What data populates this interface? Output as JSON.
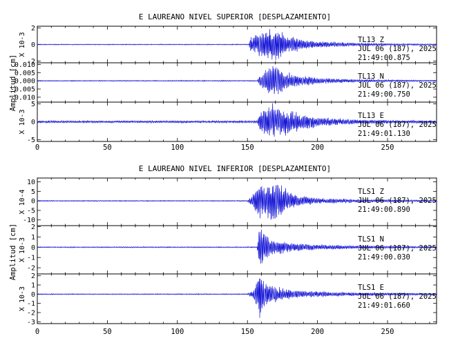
{
  "chart_data": [
    {
      "type": "line",
      "title": "E LAUREANO NIVEL SUPERIOR [DESPLAZAMIENTO]",
      "ylabel": "Amplitud [cm]",
      "xlim": [
        0,
        285
      ],
      "x_ticks": [
        "0",
        "50",
        "100",
        "150",
        "200",
        "250"
      ],
      "x_tick_values": [
        0,
        50,
        100,
        150,
        200,
        250
      ],
      "series_color": "#1515d6",
      "traces": [
        {
          "station": "TL13",
          "component": "Z",
          "date": "JUL 06 (187), 2025",
          "time": "21:49:00.875",
          "multiplier": "X 10-3",
          "ylim": [
            -2.2,
            2.2
          ],
          "y_ticks": [
            "-2",
            "0",
            "2"
          ],
          "y_tick_values": [
            -2,
            0,
            2
          ],
          "signal": {
            "noise": 0.05,
            "onset": 151,
            "env_points": [
              [
                151,
                0.06
              ],
              [
                152,
                0.9
              ],
              [
                158,
                1.3
              ],
              [
                163,
                1.8
              ],
              [
                168,
                2.0
              ],
              [
                172,
                1.6
              ],
              [
                178,
                1.0
              ],
              [
                190,
                0.6
              ],
              [
                205,
                0.35
              ],
              [
                230,
                0.18
              ],
              [
                260,
                0.1
              ],
              [
                285,
                0.08
              ]
            ]
          }
        },
        {
          "station": "TL13",
          "component": "N",
          "date": "JUL 06 (187), 2025",
          "time": "21:49:00.750",
          "multiplier": "",
          "ylim": [
            -0.013,
            0.011
          ],
          "y_ticks": [
            "-0.010",
            "-0.005",
            "0.000",
            "0.005",
            "0.010"
          ],
          "y_tick_values": [
            -0.01,
            -0.005,
            0.0,
            0.005,
            0.01
          ],
          "signal": {
            "noise": 0.0003,
            "onset": 157,
            "env_points": [
              [
                157,
                0.0004
              ],
              [
                159,
                0.004
              ],
              [
                164,
                0.007
              ],
              [
                168,
                0.0095
              ],
              [
                172,
                0.009
              ],
              [
                176,
                0.006
              ],
              [
                185,
                0.0035
              ],
              [
                200,
                0.0018
              ],
              [
                230,
                0.0008
              ],
              [
                285,
                0.0004
              ]
            ]
          }
        },
        {
          "station": "TL13",
          "component": "E",
          "date": "JUL 06 (187), 2025",
          "time": "21:49:01.130",
          "multiplier": "X 10-3",
          "ylim": [
            -5.5,
            5.5
          ],
          "y_ticks": [
            "-5",
            "0",
            "5"
          ],
          "y_tick_values": [
            -5,
            0,
            5
          ],
          "signal": {
            "noise": 0.3,
            "onset": 157,
            "env_points": [
              [
                157,
                0.35
              ],
              [
                159,
                3.0
              ],
              [
                163,
                4.0
              ],
              [
                168,
                4.8
              ],
              [
                172,
                4.0
              ],
              [
                180,
                3.2
              ],
              [
                190,
                2.0
              ],
              [
                205,
                1.2
              ],
              [
                230,
                0.6
              ],
              [
                260,
                0.4
              ],
              [
                285,
                0.35
              ]
            ]
          }
        }
      ]
    },
    {
      "type": "line",
      "title": "E LAUREANO NIVEL INFERIOR [DESPLAZAMIENTO]",
      "ylabel": "Amplitud [cm]",
      "xlim": [
        0,
        285
      ],
      "x_ticks": [
        "0",
        "50",
        "100",
        "150",
        "200",
        "250"
      ],
      "x_tick_values": [
        0,
        50,
        100,
        150,
        200,
        250
      ],
      "series_color": "#1515d6",
      "traces": [
        {
          "station": "TLS1",
          "component": "Z",
          "date": "JUL 06 (187), 2025",
          "time": "21:49:00.890",
          "multiplier": "X 10-4",
          "ylim": [
            -13,
            12
          ],
          "y_ticks": [
            "-10",
            "-5",
            "0",
            "5",
            "10"
          ],
          "y_tick_values": [
            -10,
            -5,
            0,
            5,
            10
          ],
          "signal": {
            "noise": 0.25,
            "onset": 150,
            "env_points": [
              [
                150,
                0.3
              ],
              [
                153,
                2.5
              ],
              [
                157,
                7
              ],
              [
                160,
                10
              ],
              [
                165,
                9
              ],
              [
                170,
                11
              ],
              [
                175,
                7
              ],
              [
                185,
                3
              ],
              [
                200,
                1.5
              ],
              [
                230,
                0.8
              ],
              [
                285,
                0.4
              ]
            ]
          }
        },
        {
          "station": "TLS1",
          "component": "N",
          "date": "JUL 06 (187), 2025",
          "time": "21:49:00.030",
          "multiplier": "X 10-3",
          "ylim": [
            -2.6,
            2.1
          ],
          "y_ticks": [
            "-2",
            "-1",
            "0",
            "1",
            "2"
          ],
          "y_tick_values": [
            -2,
            -1,
            0,
            1,
            2
          ],
          "signal": {
            "noise": 0.05,
            "onset": 157,
            "env_points": [
              [
                157,
                0.06
              ],
              [
                158,
                1.5
              ],
              [
                159,
                2.4
              ],
              [
                161,
                1.6
              ],
              [
                165,
                0.9
              ],
              [
                170,
                0.7
              ],
              [
                180,
                0.45
              ],
              [
                200,
                0.25
              ],
              [
                230,
                0.15
              ],
              [
                285,
                0.08
              ]
            ]
          }
        },
        {
          "station": "TLS1",
          "component": "E",
          "date": "JUL 06 (187), 2025",
          "time": "21:49:01.660",
          "multiplier": "X 10-3",
          "ylim": [
            -3.2,
            2.2
          ],
          "y_ticks": [
            "-3",
            "-2",
            "-1",
            "0",
            "1",
            "2"
          ],
          "y_tick_values": [
            -3,
            -2,
            -1,
            0,
            1,
            2
          ],
          "signal": {
            "noise": 0.05,
            "onset": 150,
            "env_points": [
              [
                150,
                0.06
              ],
              [
                154,
                0.4
              ],
              [
                157,
                1.5
              ],
              [
                159,
                2.9
              ],
              [
                162,
                1.5
              ],
              [
                166,
                1.0
              ],
              [
                175,
                0.6
              ],
              [
                190,
                0.35
              ],
              [
                220,
                0.2
              ],
              [
                285,
                0.1
              ]
            ]
          }
        }
      ]
    }
  ]
}
